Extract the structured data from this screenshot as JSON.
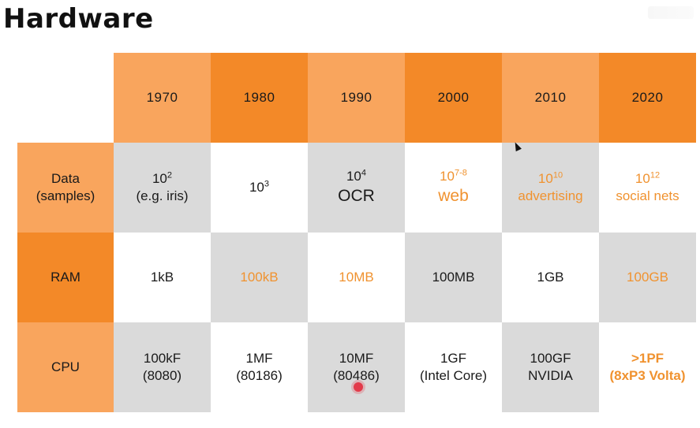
{
  "title": "Hardware",
  "years": [
    "1970",
    "1980",
    "1990",
    "2000",
    "2010",
    "2020"
  ],
  "rows": {
    "data": {
      "label_line1": "Data",
      "label_line2": "(samples)",
      "cells": [
        {
          "base": "10",
          "exp": "2",
          "sub": "(e.g. iris)"
        },
        {
          "base": "10",
          "exp": "3",
          "sub": ""
        },
        {
          "base": "10",
          "exp": "4",
          "sub": "OCR"
        },
        {
          "base": "10",
          "exp": "7-8",
          "sub": "web"
        },
        {
          "base": "10",
          "exp": "10",
          "sub": "advertising"
        },
        {
          "base": "10",
          "exp": "12",
          "sub": "social nets"
        }
      ]
    },
    "ram": {
      "label": "RAM",
      "cells": [
        "1kB",
        "100kB",
        "10MB",
        "100MB",
        "1GB",
        "100GB"
      ]
    },
    "cpu": {
      "label": "CPU",
      "cells": [
        {
          "line1": "100kF",
          "line2": "(8080)"
        },
        {
          "line1": "1MF",
          "line2": "(80186)"
        },
        {
          "line1": "10MF",
          "line2": "(80486)"
        },
        {
          "line1": "1GF",
          "line2": "(Intel Core)"
        },
        {
          "line1": "100GF",
          "line2": "NVIDIA"
        },
        {
          "line1": ">1PF",
          "line2": "(8xP3 Volta)"
        }
      ]
    }
  },
  "colors": {
    "header_light": "#f9a55d",
    "header_dark": "#f38928",
    "cell_gray": "#dadada",
    "highlight_text": "#f0922f"
  }
}
